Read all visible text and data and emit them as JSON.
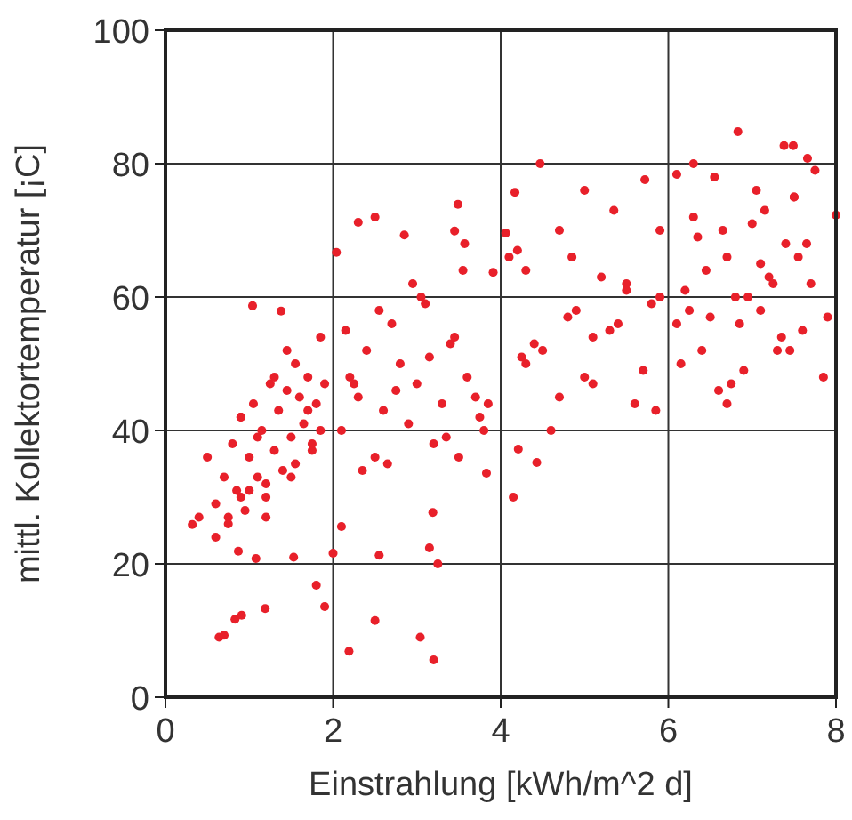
{
  "chart_data": {
    "type": "scatter",
    "xlabel": "Einstrahlung [kWh/m^2 d]",
    "ylabel": "mittl. Kollektortemperatur [¡C]",
    "xlim": [
      0,
      8
    ],
    "ylim": [
      0,
      100
    ],
    "xticks": [
      0,
      2,
      4,
      6,
      8
    ],
    "yticks": [
      0,
      20,
      40,
      60,
      80,
      100
    ],
    "grid": true,
    "marker": "circle",
    "series": [
      {
        "color": "#e8202a",
        "x": [
          0.64,
          0.7,
          0.83,
          0.91,
          1.19,
          1.8,
          1.9,
          2.19,
          2.5,
          3.04,
          3.2,
          0.87,
          1.08,
          1.53,
          2.0,
          2.55,
          3.15,
          3.25,
          3.19,
          2.1,
          0.32,
          0.4,
          4.15,
          4.21,
          4.43,
          3.83,
          1.04,
          1.38,
          2.04,
          2.3,
          2.5,
          2.85,
          3.49,
          3.45,
          3.57,
          4.47,
          4.17,
          5.0,
          5.72,
          6.1,
          6.83,
          7.38,
          7.49,
          7.66,
          8.0,
          7.9,
          4.06,
          3.91,
          0.5,
          0.6,
          0.7,
          0.75,
          0.8,
          0.85,
          0.9,
          0.95,
          1.0,
          1.05,
          1.1,
          1.15,
          1.2,
          1.25,
          1.3,
          1.35,
          1.4,
          1.45,
          1.5,
          1.55,
          1.6,
          1.65,
          1.7,
          1.75,
          1.8,
          1.85,
          1.9,
          0.6,
          0.75,
          0.9,
          1.0,
          1.1,
          1.2,
          1.3,
          1.45,
          1.55,
          1.7,
          1.85,
          0.9,
          1.2,
          1.5,
          1.75,
          2.1,
          2.2,
          2.3,
          2.4,
          2.5,
          2.6,
          2.7,
          2.8,
          2.9,
          3.0,
          3.1,
          3.2,
          3.3,
          3.4,
          3.5,
          3.6,
          3.7,
          3.8,
          2.15,
          2.35,
          2.55,
          2.75,
          2.95,
          3.15,
          3.35,
          3.55,
          3.75,
          2.25,
          2.65,
          3.05,
          3.45,
          3.85,
          4.1,
          4.3,
          4.5,
          4.7,
          4.9,
          5.1,
          5.3,
          5.5,
          5.7,
          5.9,
          4.2,
          4.4,
          4.6,
          4.8,
          5.0,
          5.2,
          5.4,
          5.6,
          5.8,
          4.3,
          4.7,
          5.1,
          5.5,
          5.9,
          4.25,
          4.85,
          5.35,
          5.85,
          6.1,
          6.2,
          6.3,
          6.4,
          6.5,
          6.6,
          6.7,
          6.8,
          6.9,
          7.0,
          7.1,
          7.2,
          7.3,
          7.4,
          7.5,
          7.6,
          7.7,
          6.15,
          6.35,
          6.55,
          6.75,
          6.95,
          7.15,
          7.35,
          7.55,
          7.75,
          6.25,
          6.45,
          6.65,
          6.85,
          7.05,
          7.25,
          7.45,
          7.65,
          6.3,
          6.7,
          7.1,
          7.5,
          7.85
        ],
        "values": [
          9,
          9.3,
          11.7,
          12.3,
          13.3,
          16.8,
          13.6,
          6.9,
          11.5,
          9,
          5.6,
          21.9,
          20.8,
          21,
          21.6,
          21.3,
          22.4,
          20,
          27.7,
          25.6,
          25.9,
          27,
          30,
          37.2,
          35.2,
          33.6,
          58.7,
          57.9,
          66.7,
          71.2,
          72,
          69.3,
          73.9,
          69.9,
          68,
          80,
          75.7,
          76,
          77.6,
          78.4,
          84.8,
          82.7,
          82.7,
          80.8,
          72.3,
          57,
          69.6,
          63.7,
          36,
          29,
          33,
          27,
          38,
          31,
          42,
          28,
          36,
          44,
          33,
          40,
          30,
          47,
          37,
          43,
          34,
          46,
          39,
          35,
          45,
          41,
          48,
          38,
          44,
          40,
          47,
          24,
          26,
          30,
          31,
          39,
          32,
          48,
          52,
          50,
          43,
          54,
          42,
          27,
          33,
          37,
          40,
          48,
          45,
          52,
          36,
          43,
          56,
          50,
          41,
          47,
          59,
          38,
          44,
          53,
          36,
          48,
          45,
          40,
          55,
          34,
          58,
          46,
          62,
          51,
          39,
          64,
          42,
          47,
          35,
          60,
          54,
          44,
          66,
          50,
          52,
          45,
          58,
          47,
          55,
          62,
          49,
          60,
          67,
          53,
          40,
          57,
          48,
          63,
          56,
          44,
          59,
          64,
          70,
          54,
          61,
          70,
          51,
          66,
          73,
          43,
          56,
          61,
          72,
          52,
          57,
          46,
          66,
          60,
          49,
          71,
          58,
          63,
          52,
          68,
          75,
          55,
          62,
          50,
          69,
          78,
          47,
          60,
          73,
          54,
          66,
          79,
          58,
          64,
          70,
          56,
          76,
          62,
          52,
          68,
          80,
          44,
          65,
          75,
          48
        ]
      }
    ]
  }
}
